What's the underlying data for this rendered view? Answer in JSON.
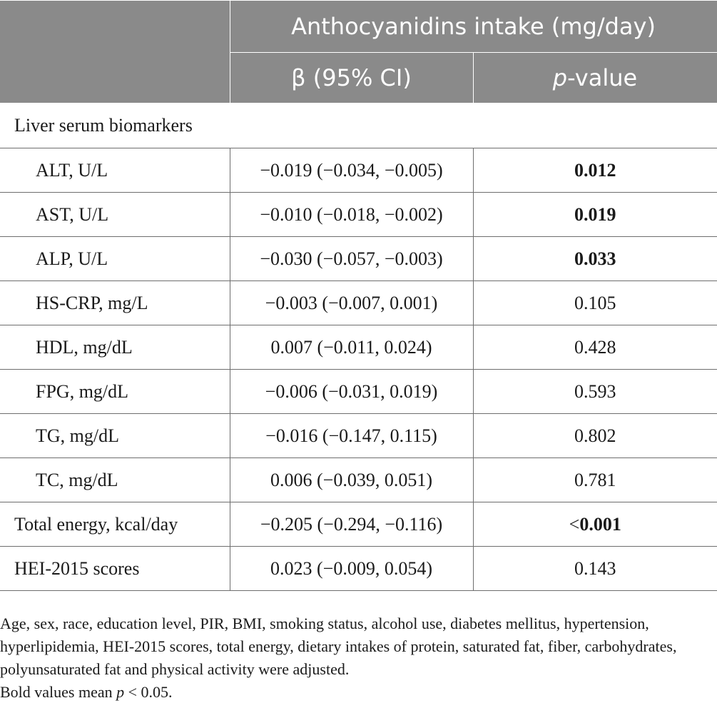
{
  "header": {
    "group_title": "Anthocyanidins intake (mg/day)",
    "col_beta": "β (95% CI)",
    "col_p_italic": "p",
    "col_p_rest": "-value"
  },
  "section_label": "Liver serum biomarkers",
  "rows": [
    {
      "label": "ALT, U/L",
      "beta": "−0.019 (−0.034, −0.005)",
      "p": "0.012"
    },
    {
      "label": "AST, U/L",
      "beta": "−0.010 (−0.018, −0.002)",
      "p": "0.019"
    },
    {
      "label": "ALP, U/L",
      "beta": "−0.030 (−0.057, −0.003)",
      "p": "0.033"
    },
    {
      "label": "HS-CRP, mg/L",
      "beta": "−0.003 (−0.007, 0.001)",
      "p": "0.105"
    },
    {
      "label": "HDL, mg/dL",
      "beta": "0.007 (−0.011, 0.024)",
      "p": "0.428"
    },
    {
      "label": "FPG, mg/dL",
      "beta": "−0.006 (−0.031, 0.019)",
      "p": "0.593"
    },
    {
      "label": "TG, mg/dL",
      "beta": "−0.016 (−0.147, 0.115)",
      "p": "0.802"
    },
    {
      "label": "TC, mg/dL",
      "beta": "0.006 (−0.039, 0.051)",
      "p": "0.781"
    },
    {
      "label": "Total energy, kcal/day",
      "beta": "−0.205 (−0.294, −0.116)",
      "p_prefix": "<",
      "p": "0.001"
    },
    {
      "label": "HEI-2015 scores",
      "beta": "0.023 (−0.009, 0.054)",
      "p": "0.143"
    }
  ],
  "footnote": {
    "adjusted": "Age, sex, race, education level, PIR, BMI, smoking status, alcohol use, diabetes mellitus, hypertension, hyperlipidemia, HEI-2015 scores, total energy, dietary intakes of protein, saturated fat, fiber, carbohydrates, polyunsaturated fat and physical activity were adjusted.",
    "bold_prefix": "Bold values mean ",
    "bold_p": "p",
    "bold_suffix": " < 0.05."
  }
}
